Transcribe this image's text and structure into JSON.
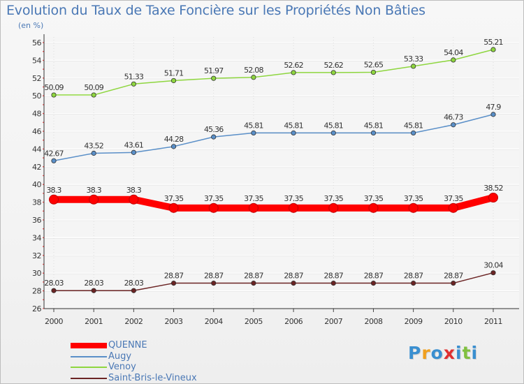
{
  "chart_data": {
    "type": "line",
    "title": "Evolution du Taux de Taxe Foncière sur les Propriétés Non Bâties",
    "subtitle": "(en %)",
    "xlabel": "",
    "ylabel": "",
    "x": [
      2000,
      2001,
      2002,
      2003,
      2004,
      2005,
      2006,
      2007,
      2008,
      2009,
      2010,
      2011
    ],
    "ylim": [
      26,
      56
    ],
    "yticks": [
      26,
      28,
      30,
      32,
      34,
      36,
      38,
      40,
      42,
      44,
      46,
      48,
      50,
      52,
      54,
      56
    ],
    "grid": true,
    "legend_position": "bottom-left",
    "series": [
      {
        "name": "QUENNE",
        "color": "#ff0000",
        "emphasis": true,
        "values": [
          38.3,
          38.3,
          38.3,
          37.35,
          37.35,
          37.35,
          37.35,
          37.35,
          37.35,
          37.35,
          37.35,
          38.52
        ],
        "labels": [
          "38.3",
          "38.3",
          "38.3",
          "37.35",
          "37.35",
          "37.35",
          "37.35",
          "37.35",
          "37.35",
          "37.35",
          "37.35",
          "38.52"
        ]
      },
      {
        "name": "Augy",
        "color": "#5a8fc8",
        "emphasis": false,
        "values": [
          42.67,
          43.52,
          43.61,
          44.28,
          45.36,
          45.81,
          45.81,
          45.81,
          45.81,
          45.81,
          46.73,
          47.9
        ],
        "labels": [
          "42.67",
          "43.52",
          "43.61",
          "44.28",
          "45.36",
          "45.81",
          "45.81",
          "45.81",
          "45.81",
          "45.81",
          "46.73",
          "47.9"
        ]
      },
      {
        "name": "Venoy",
        "color": "#8ed63f",
        "emphasis": false,
        "values": [
          50.09,
          50.09,
          51.33,
          51.71,
          51.97,
          52.08,
          52.62,
          52.62,
          52.65,
          53.33,
          54.04,
          55.21
        ],
        "labels": [
          "50.09",
          "50.09",
          "51.33",
          "51.71",
          "51.97",
          "52.08",
          "52.62",
          "52.62",
          "52.65",
          "53.33",
          "54.04",
          "55.21"
        ]
      },
      {
        "name": "Saint-Bris-le-Vineux",
        "color": "#6b2424",
        "emphasis": false,
        "values": [
          28.03,
          28.03,
          28.03,
          28.87,
          28.87,
          28.87,
          28.87,
          28.87,
          28.87,
          28.87,
          28.87,
          30.04
        ],
        "labels": [
          "28.03",
          "28.03",
          "28.03",
          "28.87",
          "28.87",
          "28.87",
          "28.87",
          "28.87",
          "28.87",
          "28.87",
          "28.87",
          "30.04"
        ]
      }
    ]
  },
  "branding": {
    "logo_letters": [
      "P",
      "r",
      "o",
      "x",
      "i",
      "t",
      "i"
    ],
    "logo_colors": [
      "#3a8fd0",
      "#f0a020",
      "#3a8fd0",
      "#e03030",
      "#3a8fd0",
      "#80c040",
      "#3a8fd0"
    ]
  }
}
